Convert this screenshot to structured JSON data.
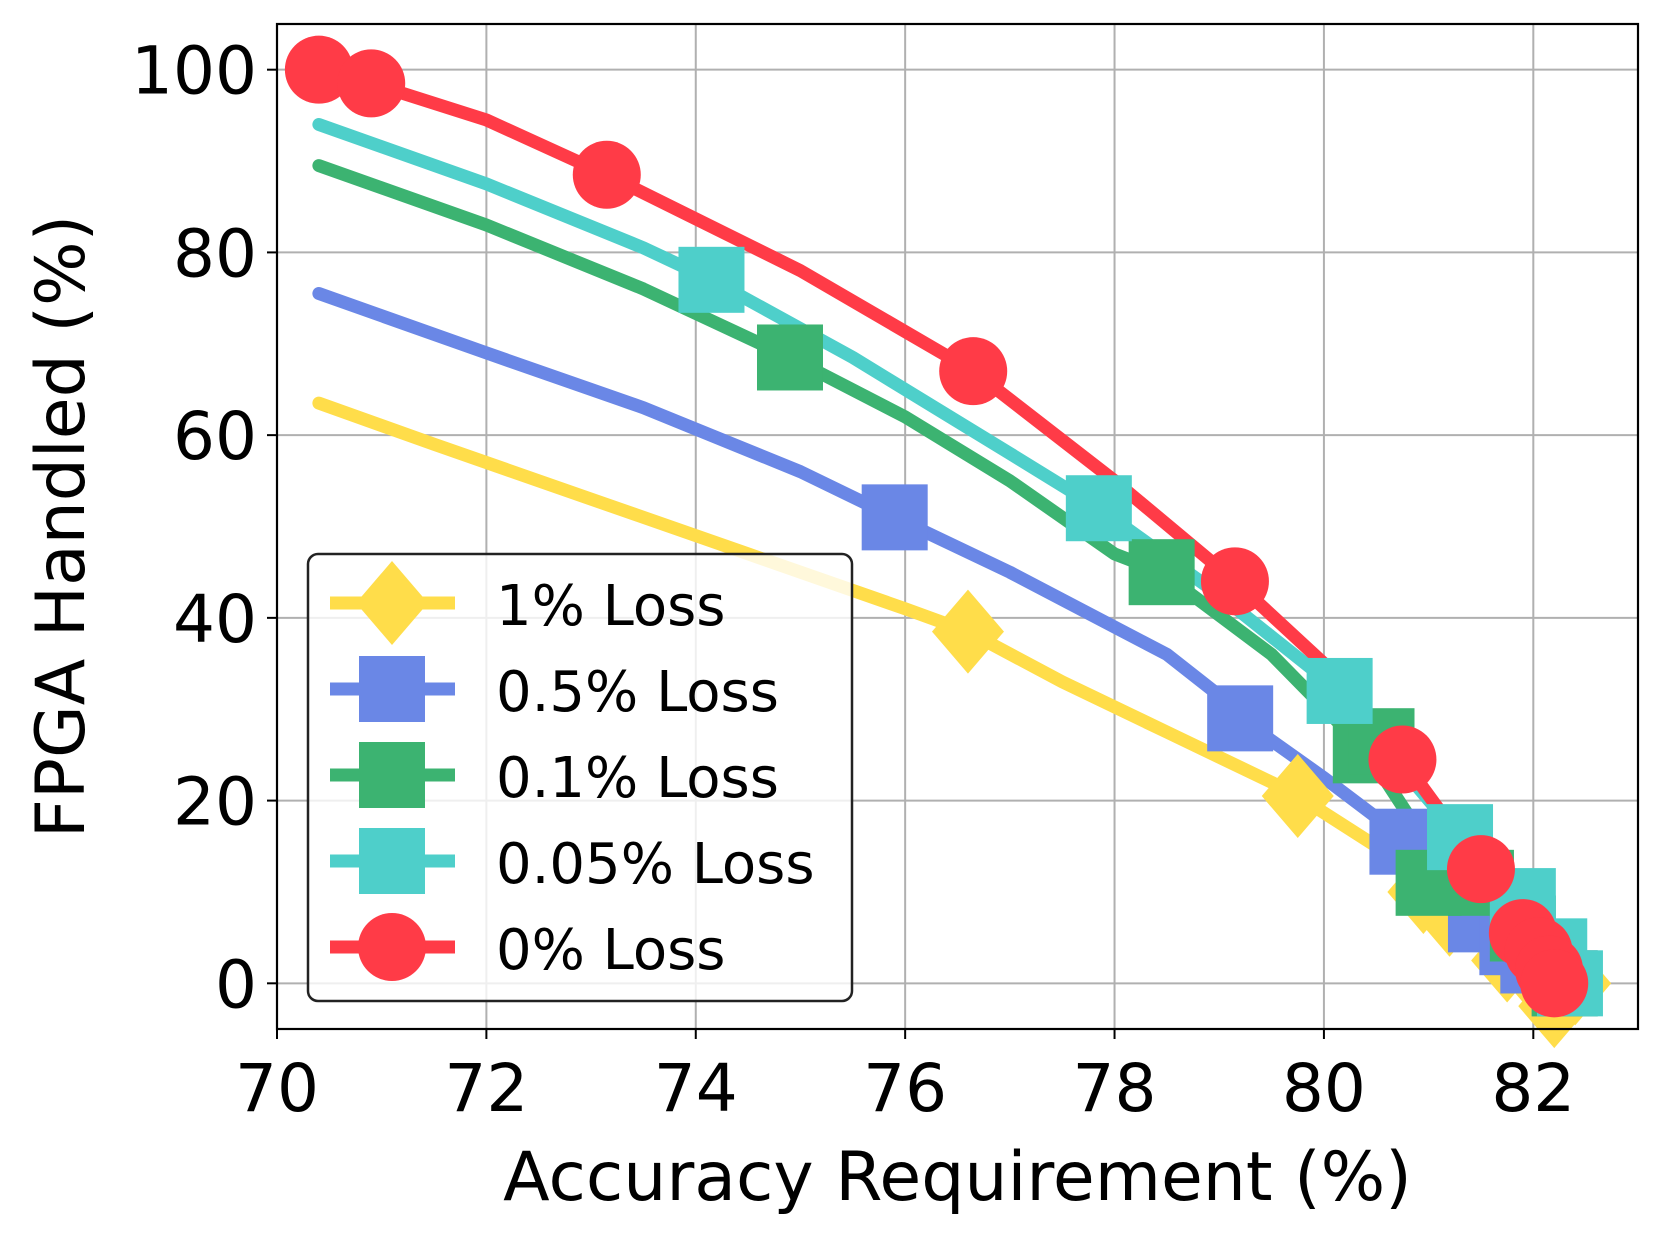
{
  "chart_data": {
    "type": "line",
    "title": "",
    "xlabel": "Accuracy Requirement (%)",
    "ylabel": "FPGA Handled (%)",
    "xlim": [
      70,
      83
    ],
    "ylim": [
      -5,
      105
    ],
    "xticks": [
      70,
      72,
      74,
      76,
      78,
      80,
      82
    ],
    "yticks": [
      0,
      20,
      40,
      60,
      80,
      100
    ],
    "grid": true,
    "legend_position": "lower-left",
    "series": [
      {
        "name": "1% Loss",
        "color": "#FFDD4A",
        "marker": "diamond",
        "x": [
          70.4,
          71.5,
          73.0,
          74.5,
          76.0,
          76.6,
          77.5,
          78.5,
          79.5,
          79.75,
          80.5,
          81.0,
          81.2,
          81.5,
          81.8,
          82.0,
          82.2,
          82.4
        ],
        "y": [
          63.5,
          59,
          53,
          47,
          41,
          38.5,
          33,
          27.5,
          22,
          20.5,
          15,
          10,
          7.5,
          4.5,
          2.5,
          1.2,
          0.3,
          0
        ],
        "markers_x": [
          76.6,
          79.75,
          80.95,
          81.2,
          81.75,
          82.0,
          82.2,
          82.4
        ],
        "markers_y": [
          38.5,
          20.5,
          10,
          7.5,
          2.5,
          1.2,
          -2.5,
          0
        ]
      },
      {
        "name": "0.5% Loss",
        "color": "#6A87E6",
        "marker": "square",
        "x": [
          70.4,
          72.0,
          73.5,
          75.0,
          75.9,
          77.0,
          78.5,
          79.0,
          79.2,
          80.0,
          80.75,
          81.0,
          81.5,
          81.8,
          82.0,
          82.3
        ],
        "y": [
          75.5,
          69,
          63,
          56,
          51,
          45,
          36,
          31.5,
          29,
          22.5,
          16,
          14.5,
          7,
          4.5,
          2.5,
          0
        ],
        "markers_x": [
          75.9,
          79.2,
          80.75,
          81.5,
          81.8,
          82.0,
          82.3
        ],
        "markers_y": [
          51,
          29,
          15.5,
          7,
          4.5,
          2.5,
          0
        ]
      },
      {
        "name": "0.1% Loss",
        "color": "#3CB371",
        "marker": "square",
        "x": [
          70.4,
          72.0,
          73.5,
          74.9,
          76.0,
          77.0,
          78.0,
          78.45,
          79.5,
          80.4,
          81.0,
          81.5,
          81.9,
          82.3
        ],
        "y": [
          89.5,
          83,
          76,
          68.5,
          62,
          55,
          47,
          45,
          36,
          25.5,
          15,
          11,
          6,
          0
        ],
        "markers_x": [
          74.9,
          78.45,
          80.4,
          81.0,
          81.5,
          81.9,
          82.3
        ],
        "markers_y": [
          68.5,
          45,
          25.5,
          11,
          11,
          6,
          0
        ],
        "extra_markers_x": [
          80.55
        ],
        "extra_markers_y": [
          26.5
        ]
      },
      {
        "name": "0.05% Loss",
        "color": "#4ECFCA",
        "marker": "square",
        "x": [
          70.4,
          72.0,
          73.5,
          74.15,
          75.5,
          77.0,
          77.85,
          79.0,
          80.15,
          80.6,
          81.3,
          81.9,
          82.2,
          82.35
        ],
        "y": [
          94,
          87.5,
          80.5,
          77,
          68.5,
          58,
          52,
          42.5,
          32,
          25.5,
          16,
          9,
          3.5,
          0
        ],
        "markers_x": [
          74.15,
          77.85,
          80.15,
          81.3,
          81.9,
          82.2,
          82.35
        ],
        "markers_y": [
          77,
          52,
          32,
          16,
          9,
          3.5,
          0
        ]
      },
      {
        "name": "0% Loss",
        "color": "#FF3B47",
        "marker": "circle",
        "x": [
          70.4,
          70.9,
          72.0,
          73.15,
          75.0,
          76.65,
          78.0,
          79.15,
          80.0,
          80.75,
          81.1,
          81.5,
          81.9,
          82.1,
          82.2
        ],
        "y": [
          100,
          98.5,
          94.5,
          88.5,
          78,
          67,
          55,
          44,
          35,
          24.5,
          19,
          12.5,
          5.5,
          2.5,
          0
        ],
        "markers_x": [
          70.4,
          70.9,
          73.15,
          76.65,
          79.15,
          80.75,
          81.5,
          81.9,
          82.05,
          82.15,
          82.2
        ],
        "markers_y": [
          100,
          98.5,
          88.5,
          67,
          44,
          24.5,
          12.5,
          5.5,
          3.5,
          1.5,
          0
        ]
      }
    ]
  }
}
